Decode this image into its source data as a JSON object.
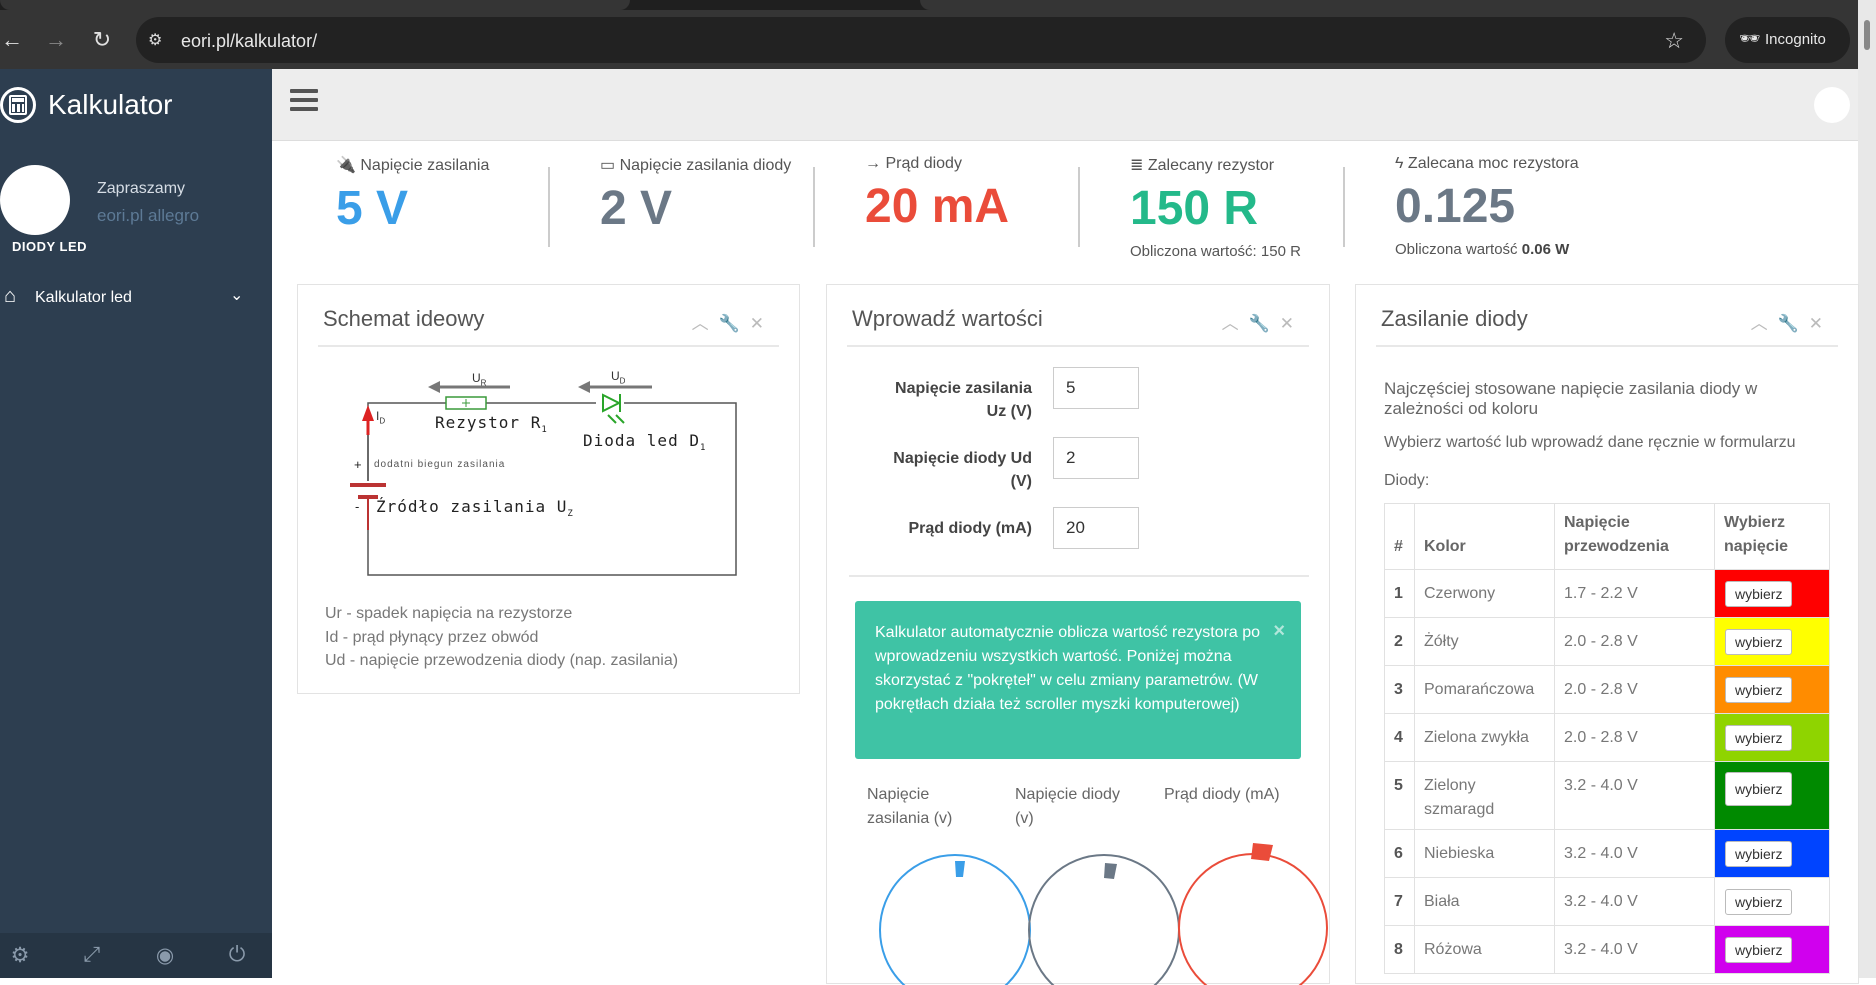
{
  "browser": {
    "url": "eori.pl/kalkulator/",
    "incognito_label": "Incognito"
  },
  "sidebar": {
    "brand": "Kalkulator",
    "welcome": "Zapraszamy",
    "shop_link": "eori.pl allegro",
    "user_label": "DIODY LED",
    "menu": [
      {
        "label": "Kalkulator led"
      }
    ]
  },
  "stats": [
    {
      "label": "Napięcie zasilania",
      "value": "5 V",
      "color": "#3a9ee8"
    },
    {
      "label": "Napięcie zasilania diody",
      "value": "2 V",
      "color": "#6b7886"
    },
    {
      "label": "Prąd diody",
      "value": "20 mA",
      "color": "#ea4c3a"
    },
    {
      "label": "Zalecany rezystor",
      "value": "150 R",
      "color": "#24b98a",
      "sub": "Obliczona wartość: 150 R"
    },
    {
      "label": "Zalecana moc rezystora",
      "value": "0.125",
      "color": "#6b7886",
      "sub_prefix": "Obliczona wartość",
      "sub_bold": "0.06 W"
    }
  ],
  "schematic": {
    "title": "Schemat ideowy",
    "labels": {
      "ur": "U",
      "ur_sub": "R",
      "ud": "U",
      "ud_sub": "D",
      "id": "I",
      "id_sub": "D",
      "resistor": "Rezystor R",
      "resistor_sub": "1",
      "diode": "Dioda led D",
      "diode_sub": "1",
      "source": "Źródło zasilania U",
      "source_sub": "Z",
      "plus_note": "dodatni biegun zasilania",
      "plus": "+",
      "minus": "-"
    },
    "legend": [
      "Ur - spadek napięcia na rezystorze",
      "Id - prąd płynący przez obwód",
      "Ud - napięcie przewodzenia diody (nap. zasilania)"
    ]
  },
  "form": {
    "title": "Wprowadź wartości",
    "fields": [
      {
        "label_line1": "Napięcie zasilania",
        "label_line2": "Uz (V)",
        "value": "5"
      },
      {
        "label_line1": "Napięcie diody Ud",
        "label_line2": "(V)",
        "value": "2"
      },
      {
        "label_line1": "Prąd diody (mA)",
        "label_line2": "",
        "value": "20"
      }
    ],
    "alert": "Kalkulator automatycznie oblicza wartość rezystora po wprowadzeniu wszystkich wartość. Poniżej można skorzystać z \"pokręteł\" w celu zmiany parametrów. (W pokrętłach działa też scroller myszki komputerowej)",
    "alert_close": "×",
    "knobs": [
      {
        "label_line1": "Napięcie",
        "label_line2": "zasilania (v)",
        "color": "#3a9ee8"
      },
      {
        "label_line1": "Napięcie diody",
        "label_line2": "(v)",
        "color": "#6b7886"
      },
      {
        "label_line1": "Prąd diody (mA)",
        "label_line2": "",
        "color": "#ea4c3a"
      }
    ]
  },
  "table_panel": {
    "title": "Zasilanie diody",
    "intro": "Najczęściej stosowane napięcie zasilania diody w zależności od koloru",
    "hint": "Wybierz wartość lub wprowadź dane ręcznie w formularzu",
    "diodes_label": "Diody:",
    "headers": {
      "num": "#",
      "color": "Kolor",
      "voltage_line1": "Napięcie",
      "voltage_line2": "przewodzenia",
      "choose_line1": "Wybierz",
      "choose_line2": "napięcie"
    },
    "button_label": "wybierz",
    "rows": [
      {
        "num": "1",
        "name": "Czerwony",
        "voltage": "1.7 - 2.2 V",
        "swatch": "#ff0000"
      },
      {
        "num": "2",
        "name": "Żółty",
        "voltage": "2.0 - 2.8 V",
        "swatch": "#ffff00"
      },
      {
        "num": "3",
        "name": "Pomarańczowa",
        "voltage": "2.0 - 2.8 V",
        "swatch": "#ff8c00"
      },
      {
        "num": "4",
        "name": "Zielona zwykła",
        "voltage": "2.0 - 2.8 V",
        "swatch": "#8fd400"
      },
      {
        "num": "5",
        "name": "Zielony szmaragd",
        "voltage": "3.2 - 4.0 V",
        "swatch": "#008a00"
      },
      {
        "num": "6",
        "name": "Niebieska",
        "voltage": "3.2 - 4.0 V",
        "swatch": "#0044ff"
      },
      {
        "num": "7",
        "name": "Biała",
        "voltage": "3.2 - 4.0 V",
        "swatch": "#ffffff"
      },
      {
        "num": "8",
        "name": "Różowa",
        "voltage": "3.2 - 4.0 V",
        "swatch": "#d000ee"
      }
    ]
  }
}
